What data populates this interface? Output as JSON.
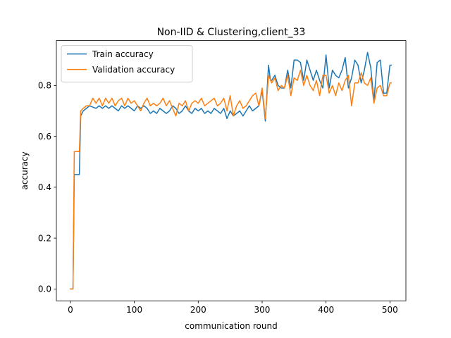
{
  "chart_data": {
    "type": "line",
    "title": "Non-IID & Clustering,client_33",
    "xlabel": "communication round",
    "ylabel": "accuracy",
    "xlim": [
      -22,
      525
    ],
    "ylim": [
      -0.0465,
      0.9765
    ],
    "xticks": [
      0,
      100,
      200,
      300,
      400,
      500
    ],
    "yticks": [
      0.0,
      0.2,
      0.4,
      0.6,
      0.8
    ],
    "xtick_labels": [
      "0",
      "100",
      "200",
      "300",
      "400",
      "500"
    ],
    "ytick_labels": [
      "0.0",
      "0.2",
      "0.4",
      "0.6",
      "0.8"
    ],
    "grid": false,
    "legend_position": "top-left",
    "series": [
      {
        "name": "Train accuracy",
        "color": "#1f77b4",
        "x": [
          0,
          4,
          6,
          14,
          16,
          20,
          25,
          30,
          40,
          45,
          50,
          55,
          60,
          65,
          70,
          75,
          80,
          85,
          90,
          95,
          100,
          105,
          110,
          115,
          120,
          125,
          130,
          135,
          140,
          145,
          150,
          155,
          160,
          165,
          170,
          175,
          180,
          185,
          190,
          195,
          200,
          205,
          210,
          215,
          220,
          225,
          230,
          235,
          240,
          245,
          250,
          255,
          260,
          265,
          270,
          275,
          280,
          285,
          290,
          295,
          300,
          305,
          310,
          313,
          315,
          320,
          325,
          330,
          335,
          340,
          345,
          350,
          355,
          360,
          365,
          370,
          375,
          380,
          385,
          390,
          395,
          400,
          405,
          410,
          415,
          420,
          425,
          430,
          435,
          440,
          445,
          450,
          455,
          460,
          465,
          470,
          475,
          480,
          485,
          490,
          495,
          500,
          502
        ],
        "y": [
          0.0,
          0.0,
          0.45,
          0.45,
          0.68,
          0.7,
          0.71,
          0.72,
          0.71,
          0.72,
          0.71,
          0.72,
          0.71,
          0.72,
          0.71,
          0.7,
          0.72,
          0.71,
          0.72,
          0.71,
          0.7,
          0.72,
          0.71,
          0.72,
          0.71,
          0.69,
          0.7,
          0.69,
          0.71,
          0.7,
          0.69,
          0.7,
          0.72,
          0.71,
          0.69,
          0.7,
          0.72,
          0.7,
          0.69,
          0.71,
          0.7,
          0.71,
          0.69,
          0.7,
          0.69,
          0.71,
          0.7,
          0.69,
          0.71,
          0.67,
          0.7,
          0.68,
          0.69,
          0.7,
          0.68,
          0.7,
          0.72,
          0.7,
          0.71,
          0.72,
          0.78,
          0.66,
          0.88,
          0.82,
          0.82,
          0.84,
          0.8,
          0.79,
          0.79,
          0.86,
          0.79,
          0.9,
          0.9,
          0.89,
          0.82,
          0.9,
          0.86,
          0.82,
          0.86,
          0.82,
          0.79,
          0.92,
          0.79,
          0.86,
          0.84,
          0.83,
          0.86,
          0.91,
          0.79,
          0.83,
          0.9,
          0.88,
          0.81,
          0.86,
          0.93,
          0.87,
          0.74,
          0.89,
          0.9,
          0.77,
          0.77,
          0.88,
          0.88
        ]
      },
      {
        "name": "Validation accuracy",
        "color": "#ff7f0e",
        "x": [
          0,
          4,
          6,
          14,
          16,
          20,
          25,
          30,
          35,
          40,
          45,
          50,
          55,
          60,
          65,
          70,
          75,
          80,
          85,
          90,
          95,
          100,
          105,
          110,
          115,
          120,
          125,
          130,
          135,
          140,
          145,
          150,
          155,
          160,
          165,
          170,
          175,
          180,
          185,
          190,
          195,
          200,
          205,
          210,
          215,
          220,
          225,
          230,
          235,
          240,
          245,
          250,
          255,
          260,
          265,
          270,
          275,
          280,
          285,
          290,
          295,
          300,
          305,
          310,
          315,
          320,
          325,
          330,
          335,
          340,
          345,
          350,
          355,
          360,
          365,
          370,
          375,
          380,
          385,
          390,
          395,
          400,
          405,
          410,
          415,
          420,
          425,
          430,
          435,
          440,
          445,
          450,
          455,
          460,
          465,
          470,
          475,
          480,
          485,
          490,
          495,
          500,
          502
        ],
        "y": [
          0.0,
          0.0,
          0.54,
          0.54,
          0.7,
          0.71,
          0.72,
          0.72,
          0.75,
          0.73,
          0.75,
          0.72,
          0.75,
          0.73,
          0.75,
          0.72,
          0.74,
          0.75,
          0.72,
          0.75,
          0.73,
          0.74,
          0.72,
          0.7,
          0.73,
          0.75,
          0.72,
          0.73,
          0.72,
          0.73,
          0.75,
          0.72,
          0.74,
          0.71,
          0.68,
          0.73,
          0.72,
          0.74,
          0.7,
          0.73,
          0.74,
          0.73,
          0.75,
          0.72,
          0.73,
          0.74,
          0.75,
          0.72,
          0.73,
          0.75,
          0.7,
          0.76,
          0.68,
          0.72,
          0.74,
          0.71,
          0.72,
          0.74,
          0.76,
          0.77,
          0.72,
          0.79,
          0.67,
          0.84,
          0.81,
          0.83,
          0.78,
          0.8,
          0.79,
          0.84,
          0.76,
          0.83,
          0.82,
          0.86,
          0.8,
          0.84,
          0.8,
          0.78,
          0.82,
          0.76,
          0.84,
          0.84,
          0.77,
          0.8,
          0.76,
          0.81,
          0.78,
          0.82,
          0.84,
          0.72,
          0.81,
          0.81,
          0.85,
          0.81,
          0.8,
          0.83,
          0.73,
          0.79,
          0.8,
          0.76,
          0.76,
          0.81,
          0.81
        ]
      }
    ]
  }
}
